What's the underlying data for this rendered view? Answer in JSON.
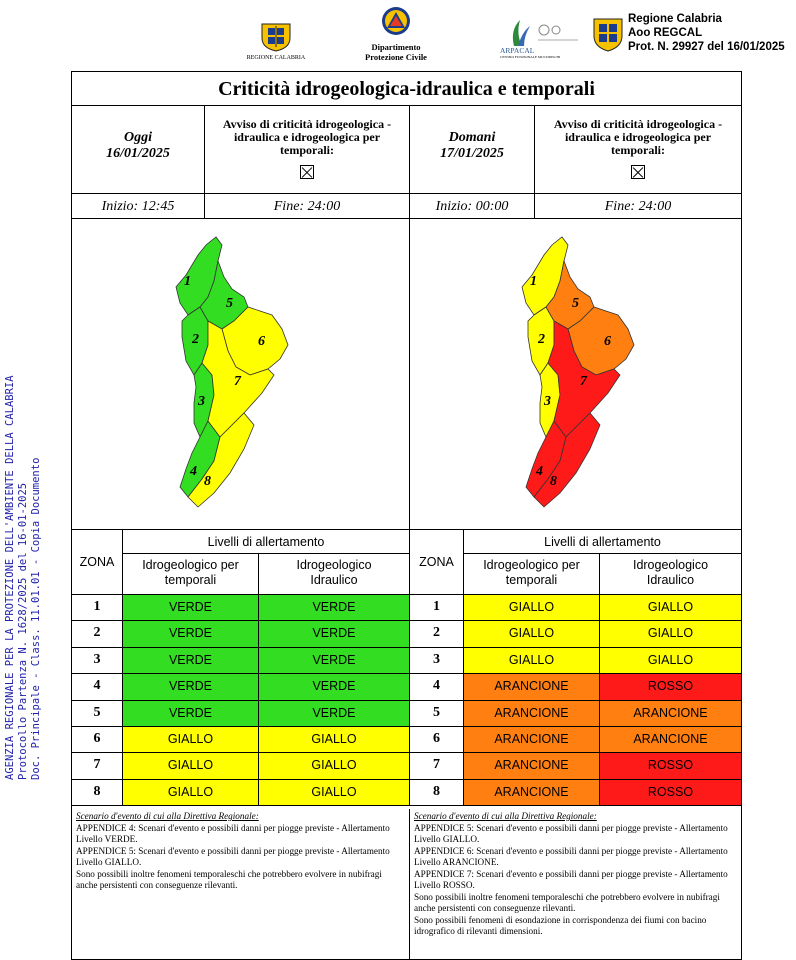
{
  "header": {
    "logo_regione": "REGIONE CALABRIA",
    "logo_dipartimento": [
      "Dipartimento",
      "Protezione Civile"
    ],
    "logo_arpacal": "ARPACAL",
    "logo_arpacal_sub": "CENTRO FUNZIONALE MULTIRISCHI",
    "region_block": [
      "Regione Calabria",
      "Aoo REGCAL",
      "Prot. N. 29927 del 16/01/2025"
    ]
  },
  "sidebar_text": [
    "AGENZIA REGIONALE PER LA PROTEZIONE DELL'AMBIENTE DELLA CALABRIA",
    "Protocollo Partenza N. 1628/2025 del 16-01-2025",
    "Doc. Principale - Class. 11.01.01 - Copia Documento"
  ],
  "title": "Criticità idrogeologica-idraulica e temporali",
  "today": {
    "label": "Oggi",
    "date": "16/01/2025",
    "warning": "Avviso di criticità idrogeologica - idraulica e idrogeologica per temporali:",
    "start": "Inizio: 12:45",
    "end": "Fine: 24:00"
  },
  "tomorrow": {
    "label": "Domani",
    "date": "17/01/2025",
    "warning": "Avviso di criticità idrogeologica - idraulica e idrogeologica per temporali:",
    "start": "Inizio: 00:00",
    "end": "Fine: 24:00"
  },
  "table_labels": {
    "zona": "ZONA",
    "livelli": "Livelli di allertamento",
    "col1": "Idrogeologico per temporali",
    "col2": "Idrogeologico Idraulico"
  },
  "colors": {
    "VERDE": "#33dd22",
    "GIALLO": "#ffff00",
    "ARANCIONE": "#ff7f11",
    "ROSSO": "#ff1a1a"
  },
  "zones_today": [
    {
      "zone": "1",
      "temp": "VERDE",
      "idro": "VERDE"
    },
    {
      "zone": "2",
      "temp": "VERDE",
      "idro": "VERDE"
    },
    {
      "zone": "3",
      "temp": "VERDE",
      "idro": "VERDE"
    },
    {
      "zone": "4",
      "temp": "VERDE",
      "idro": "VERDE"
    },
    {
      "zone": "5",
      "temp": "VERDE",
      "idro": "VERDE"
    },
    {
      "zone": "6",
      "temp": "GIALLO",
      "idro": "GIALLO"
    },
    {
      "zone": "7",
      "temp": "GIALLO",
      "idro": "GIALLO"
    },
    {
      "zone": "8",
      "temp": "GIALLO",
      "idro": "GIALLO"
    }
  ],
  "zones_tomorrow": [
    {
      "zone": "1",
      "temp": "GIALLO",
      "idro": "GIALLO"
    },
    {
      "zone": "2",
      "temp": "GIALLO",
      "idro": "GIALLO"
    },
    {
      "zone": "3",
      "temp": "GIALLO",
      "idro": "GIALLO"
    },
    {
      "zone": "4",
      "temp": "ARANCIONE",
      "idro": "ROSSO"
    },
    {
      "zone": "5",
      "temp": "ARANCIONE",
      "idro": "ARANCIONE"
    },
    {
      "zone": "6",
      "temp": "ARANCIONE",
      "idro": "ARANCIONE"
    },
    {
      "zone": "7",
      "temp": "ARANCIONE",
      "idro": "ROSSO"
    },
    {
      "zone": "8",
      "temp": "ARANCIONE",
      "idro": "ROSSO"
    }
  ],
  "map_today_colors": [
    "VERDE",
    "VERDE",
    "VERDE",
    "VERDE",
    "VERDE",
    "GIALLO",
    "GIALLO",
    "GIALLO"
  ],
  "map_tomorrow_colors": [
    "GIALLO",
    "GIALLO",
    "GIALLO",
    "ROSSO",
    "ARANCIONE",
    "ARANCIONE",
    "ROSSO",
    "ROSSO"
  ],
  "map_labels": [
    "1",
    "2",
    "3",
    "4",
    "5",
    "6",
    "7",
    "8"
  ],
  "scenario_today": {
    "heading": "Scenario d'evento di cui alla Direttiva Regionale:",
    "lines": [
      "APPENDICE 4: Scenari d'evento e possibili danni per piogge previste - Allertamento Livello VERDE.",
      "APPENDICE 5: Scenari d'evento e possibili danni per piogge previste - Allertamento Livello GIALLO.",
      "Sono possibili inoltre fenomeni temporaleschi che potrebbero evolvere in nubifragi anche persistenti con conseguenze rilevanti."
    ]
  },
  "scenario_tomorrow": {
    "heading": "Scenario d'evento di cui alla Direttiva Regionale:",
    "lines": [
      "APPENDICE 5: Scenari d'evento e possibili danni per piogge previste - Allertamento Livello GIALLO.",
      "APPENDICE 6: Scenari d'evento e possibili danni per piogge previste - Allertamento Livello ARANCIONE.",
      "APPENDICE 7: Scenari d'evento e possibili danni per piogge previste - Allertamento Livello ROSSO.",
      "Sono possibili inoltre fenomeni temporaleschi che potrebbero evolvere in nubifragi anche persistenti con conseguenze rilevanti.",
      "Sono possibili fenomeni di esondazione in corrispondenza dei fiumi con bacino idrografico di rilevanti dimensioni."
    ]
  }
}
